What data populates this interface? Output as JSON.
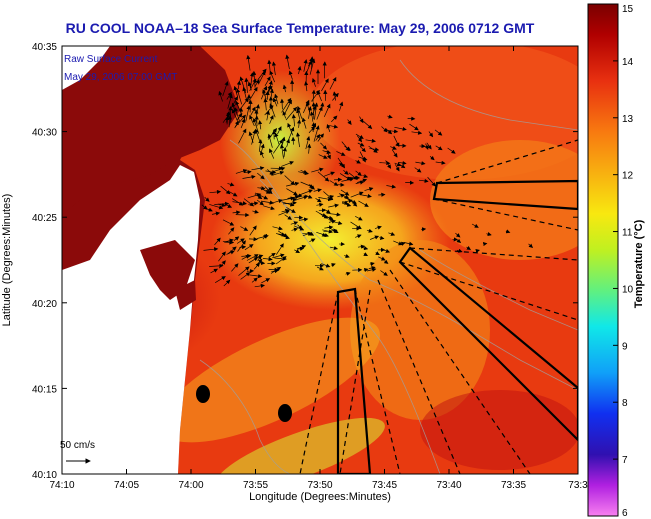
{
  "title": "RU COOL  NOAA–18  Sea Surface Temperature:  May 29, 2006 0712 GMT",
  "legend": {
    "line1": "Raw Surface Current",
    "line2": "May 29, 2006 07:00 GMT",
    "scale_label": "50 cm/s"
  },
  "axes": {
    "xlabel": "Longitude (Degrees:Minutes)",
    "ylabel": "Latitude (Degrees:Minutes)",
    "x_ticks": [
      "74:10",
      "74:05",
      "74:00",
      "73:55",
      "73:50",
      "73:45",
      "73:40",
      "73:35",
      "73:3"
    ],
    "y_ticks": [
      "40:35",
      "40:30",
      "40:25",
      "40:20",
      "40:15",
      "40:10"
    ]
  },
  "colorbar": {
    "title": "Temperature (°C)",
    "ticks": [
      "15",
      "14",
      "13",
      "12",
      "11",
      "10",
      "9",
      "8",
      "7",
      "6"
    ],
    "min": 6,
    "max": 15
  },
  "colors": {
    "land": "#8b0a0a",
    "title": "#1b1bb0",
    "legend_text": "#1b1bb0"
  }
}
